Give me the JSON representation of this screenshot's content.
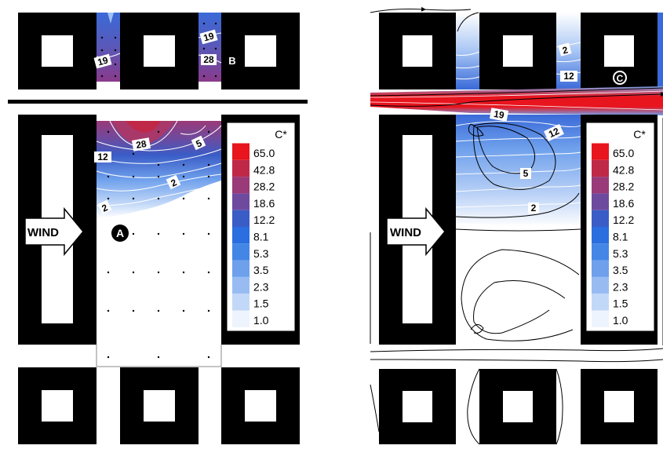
{
  "left_panel": {
    "wind_label": "WIND",
    "markers": [
      "A",
      "B"
    ],
    "contour_labels": [
      "19",
      "19",
      "28",
      "28",
      "12",
      "5",
      "2",
      "2"
    ]
  },
  "right_panel": {
    "wind_label": "WIND",
    "markers": [
      "C"
    ],
    "contour_labels": [
      "2",
      "12",
      "19",
      "12",
      "5",
      "2"
    ]
  },
  "legend": {
    "title": "C*",
    "levels": [
      "65.0",
      "42.8",
      "28.2",
      "18.6",
      "12.2",
      "8.1",
      "5.3",
      "3.5",
      "2.3",
      "1.5",
      "1.0"
    ],
    "colors": [
      "#e8141e",
      "#c02848",
      "#9a3a78",
      "#6e4a9e",
      "#3a5cc6",
      "#2a6ee0",
      "#4486e6",
      "#6ea0ec",
      "#98bcf2",
      "#c2d8f8",
      "#eef4fd"
    ]
  }
}
